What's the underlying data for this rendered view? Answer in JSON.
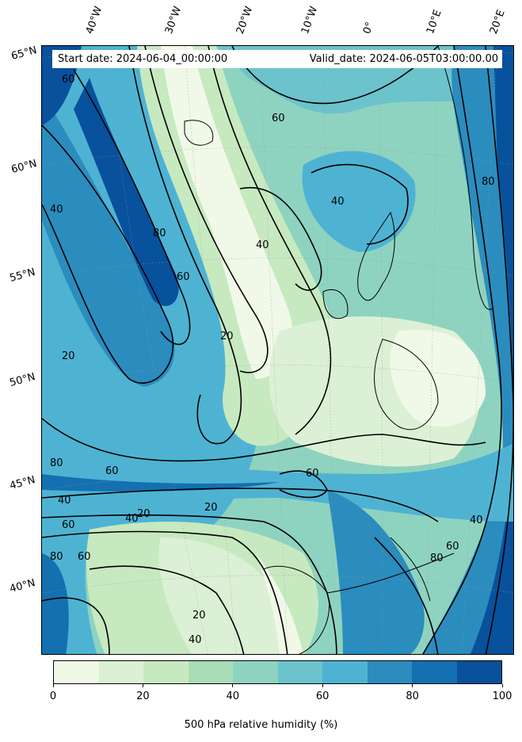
{
  "header": {
    "start_date": "Start date: 2024-06-04_00:00:00",
    "valid_date": "Valid_date: 2024-06-05T03:00:00.00"
  },
  "axes": {
    "lon_labels": [
      "40°W",
      "30°W",
      "20°W",
      "10°W",
      "0°",
      "10°E",
      "20°E"
    ],
    "lat_labels": [
      "65°N",
      "60°N",
      "55°N",
      "50°N",
      "45°N",
      "40°N"
    ]
  },
  "colorbar": {
    "title": "500 hPa relative humidity (%)",
    "ticks": [
      "0",
      "20",
      "40",
      "60",
      "80",
      "100"
    ],
    "levels": [
      0,
      10,
      20,
      30,
      40,
      50,
      60,
      70,
      80,
      90,
      100
    ],
    "colors": [
      "#f0f9e8",
      "#dcf0d5",
      "#c7e9c0",
      "#a8ddb5",
      "#8ed3c0",
      "#6cc3cc",
      "#4eb3d3",
      "#2b8cbe",
      "#1470b0",
      "#08519c"
    ]
  },
  "contour_labels": [
    "60",
    "40",
    "20",
    "80",
    "60",
    "40",
    "20",
    "80",
    "60",
    "20",
    "40",
    "60",
    "80",
    "60",
    "40",
    "20",
    "60",
    "80",
    "40",
    "60",
    "20",
    "40",
    "80",
    "60",
    "40"
  ]
}
